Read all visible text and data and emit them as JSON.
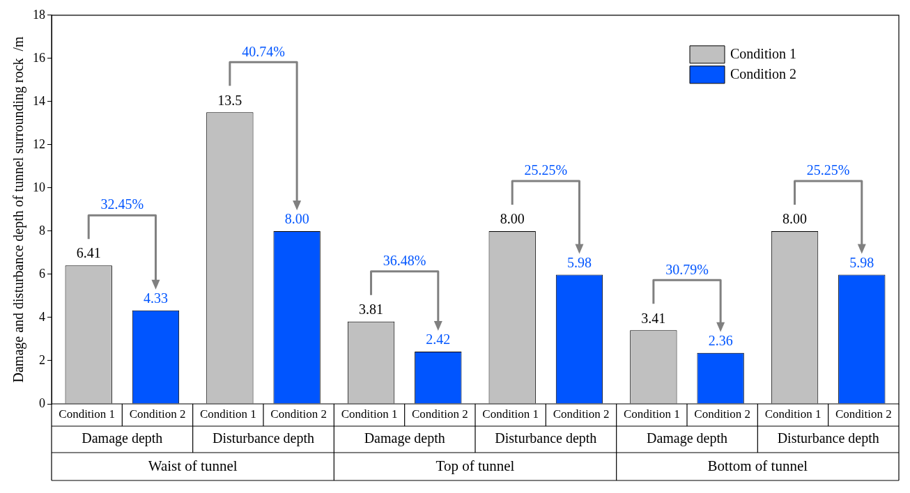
{
  "chart_data": {
    "type": "bar",
    "ylabel": "Damage and disturbance depth of tunnel surrounding rock  /m",
    "categories": [
      "Damage depth",
      "Disturbance depth",
      "Damage depth",
      "Disturbance depth",
      "Damage depth",
      "Disturbance depth"
    ],
    "series": [
      {
        "name": "Condition 1",
        "color": "#c0c0c0",
        "values": [
          6.41,
          13.5,
          3.81,
          8.0,
          3.41,
          8.0
        ],
        "value_labels": [
          "6.41",
          "13.5",
          "3.81",
          "8.00",
          "3.41",
          "8.00"
        ]
      },
      {
        "name": "Condition 2",
        "color": "#0055ff",
        "values": [
          4.33,
          8.0,
          2.42,
          5.98,
          2.36,
          5.98
        ],
        "value_labels": [
          "4.33",
          "8.00",
          "2.42",
          "5.98",
          "2.36",
          "5.98"
        ]
      }
    ],
    "annotations": [
      "32.45%",
      "40.74%",
      "36.48%",
      "25.25%",
      "30.79%",
      "25.25%",
      "Waist of tunnel",
      "Top of tunnel",
      "Bottom of tunnel"
    ],
    "ylim": [
      0,
      18
    ],
    "yticks": [
      0,
      2,
      4,
      6,
      8,
      10,
      12,
      14,
      16,
      18
    ],
    "legend": "top right"
  }
}
